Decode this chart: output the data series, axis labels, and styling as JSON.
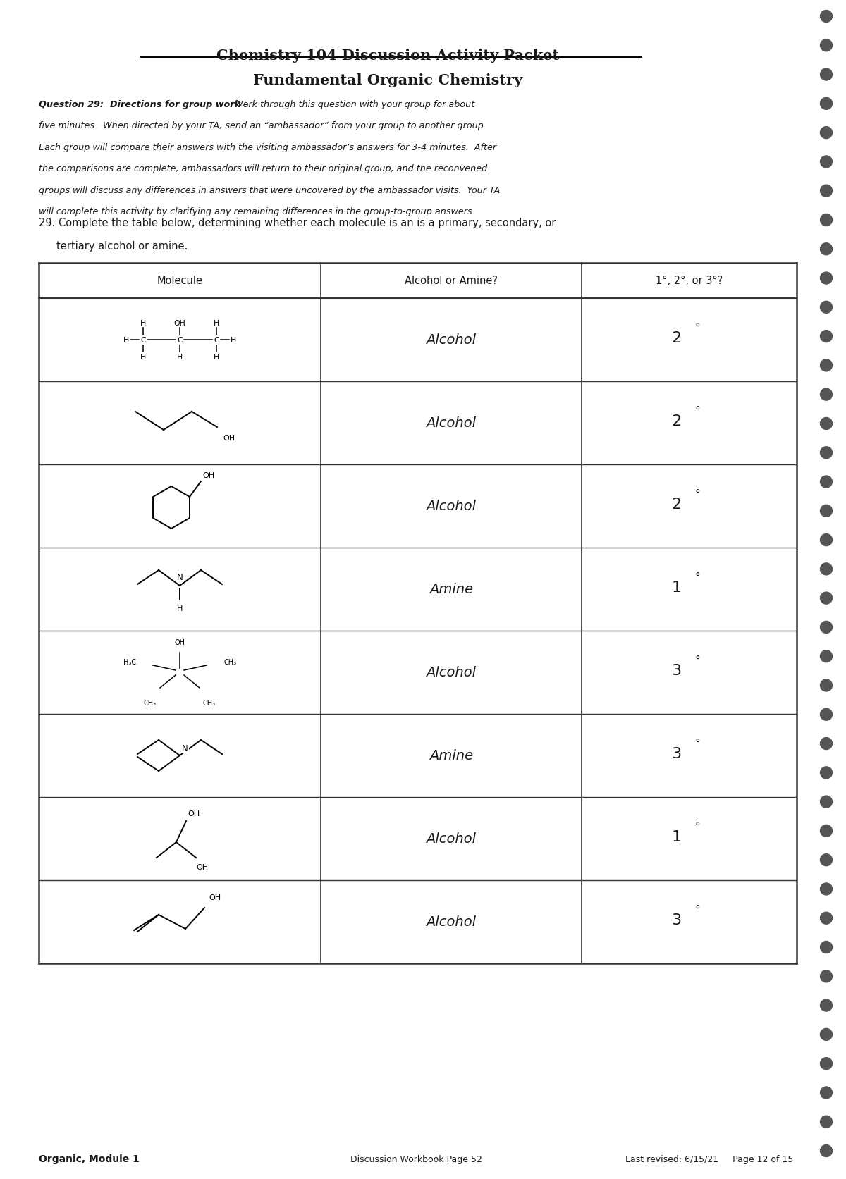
{
  "title1": "Chemistry 104 Discussion Activity Packet",
  "title2": "Fundamental Organic Chemistry",
  "question_header": "Question 29:  Directions for group work –",
  "question_body_line1": " Work through this question with your group for about",
  "question_body_lines": [
    "five minutes.  When directed by your TA, send an “ambassador” from your group to another group.",
    "Each group will compare their answers with the visiting ambassador’s answers for 3-4 minutes.  After",
    "the comparisons are complete, ambassadors will return to their original group, and the reconvened",
    "groups will discuss any differences in answers that were uncovered by the ambassador visits.  Your TA",
    "will complete this activity by clarifying any remaining differences in the group-to-group answers."
  ],
  "q29_line1": "29. Complete the table below, determining whether each molecule is an is a primary, secondary, or",
  "q29_line2": "tertiary alcohol or amine.",
  "col_headers": [
    "Molecule",
    "Alcohol or Amine?",
    "1°, 2°, or 3°?"
  ],
  "rows": [
    {
      "answer": "Alcohol",
      "degree": "2"
    },
    {
      "answer": "Alcohol",
      "degree": "2"
    },
    {
      "answer": "Alcohol",
      "degree": "2"
    },
    {
      "answer": "Amine",
      "degree": "1"
    },
    {
      "answer": "Alcohol",
      "degree": "3"
    },
    {
      "answer": "Amine",
      "degree": "3"
    },
    {
      "answer": "Alcohol",
      "degree": "1"
    },
    {
      "answer": "Alcohol",
      "degree": "3"
    }
  ],
  "footer_left": "Organic, Module 1",
  "footer_center": "Discussion Workbook Page 52",
  "footer_right": "Last revised: 6/15/21     Page 12 of 15",
  "bg_color": "#ffffff",
  "text_color": "#1a1a1a"
}
